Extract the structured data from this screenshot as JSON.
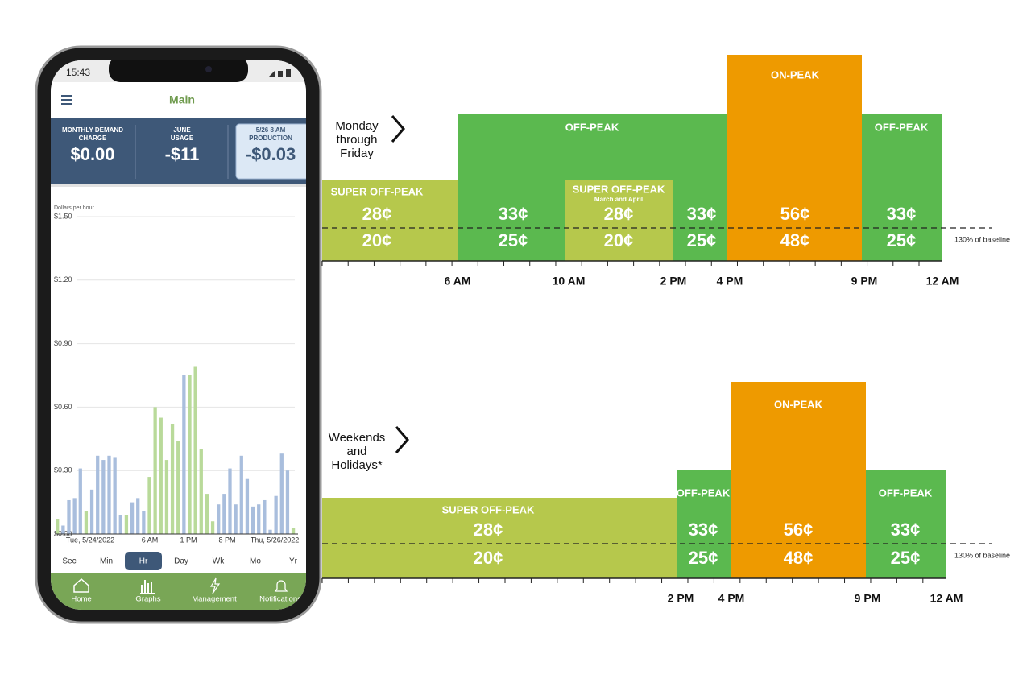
{
  "phone": {
    "status_time": "15:43",
    "app_title": "Main",
    "cards": [
      {
        "label_lines": [
          "MONTHLY DEMAND",
          "CHARGE"
        ],
        "value": "$0.00"
      },
      {
        "label_lines": [
          "JUNE",
          "USAGE"
        ],
        "value": "-$11"
      },
      {
        "label_lines": [
          "5/26 8 AM",
          "PRODUCTION"
        ],
        "value": "-$0.03"
      }
    ],
    "chart_data": {
      "type": "bar",
      "y_label": "Dollars per hour",
      "values": [
        0.07,
        0.04,
        0.16,
        0.17,
        0.31,
        0.11,
        0.21,
        0.37,
        0.35,
        0.37,
        0.36,
        0.09,
        0.09,
        0.15,
        0.17,
        0.11,
        0.27,
        0.6,
        0.55,
        0.35,
        0.52,
        0.44,
        0.75,
        0.75,
        0.79,
        0.4,
        0.19,
        0.06,
        0.14,
        0.19,
        0.31,
        0.14,
        0.37,
        0.26,
        0.13,
        0.14,
        0.16,
        0.02,
        0.18,
        0.38,
        0.3,
        0.03
      ],
      "colors": [
        "#b9da9a",
        "#a9bedd",
        "#a9bedd",
        "#a9bedd",
        "#a9bedd",
        "#b9da9a",
        "#a9bedd",
        "#a9bedd",
        "#a9bedd",
        "#a9bedd",
        "#a9bedd",
        "#a9bedd",
        "#b9da9a",
        "#a9bedd",
        "#a9bedd",
        "#a9bedd",
        "#b9da9a",
        "#b9da9a",
        "#b9da9a",
        "#b9da9a",
        "#b9da9a",
        "#b9da9a",
        "#a9bedd",
        "#b9da9a",
        "#b9da9a",
        "#b9da9a",
        "#b9da9a",
        "#b9da9a",
        "#a9bedd",
        "#a9bedd",
        "#a9bedd",
        "#a9bedd",
        "#a9bedd",
        "#a9bedd",
        "#a9bedd",
        "#a9bedd",
        "#a9bedd",
        "#a9bedd",
        "#a9bedd",
        "#a9bedd",
        "#a9bedd",
        "#b9da9a"
      ],
      "ylim": [
        0,
        1.5
      ],
      "yticks": [
        {
          "value": 0,
          "label": "$0.00"
        },
        {
          "value": 0.3,
          "label": "$0.30"
        },
        {
          "value": 0.6,
          "label": "$0.60"
        },
        {
          "value": 0.9,
          "label": "$0.90"
        },
        {
          "value": 1.2,
          "label": "$1.20"
        },
        {
          "value": 1.5,
          "label": "$1.50"
        }
      ],
      "x_labels": [
        "Tue, 5/24/2022",
        "6 AM",
        "1 PM",
        "8 PM",
        "Thu, 5/26/2022"
      ],
      "grid": true
    },
    "tabs": [
      "Sec",
      "Min",
      "Hr",
      "Day",
      "Wk",
      "Mo",
      "Yr"
    ],
    "selected_tab_index": 2,
    "nav": [
      "Home",
      "Graphs",
      "Management",
      "Notifications"
    ]
  },
  "schedule": {
    "panels": [
      {
        "day_lines": [
          "Monday",
          "through",
          "Friday"
        ],
        "labels": [
          "SUPER OFF-PEAK",
          "OFF-PEAK",
          "SUPER OFF-PEAK",
          "March and April",
          "ON-PEAK",
          "OFF-PEAK"
        ],
        "prices": [
          [
            "28¢",
            "20¢"
          ],
          [
            "33¢",
            "25¢"
          ],
          [
            "28¢",
            "20¢"
          ],
          [
            "33¢",
            "25¢"
          ],
          [
            "56¢",
            "48¢"
          ],
          [
            "33¢",
            "25¢"
          ]
        ],
        "times": [
          "6 AM",
          "10 AM",
          "2 PM",
          "4 PM",
          "9 PM",
          "12 AM"
        ],
        "baseline_note": "130% of baseline"
      },
      {
        "day_lines": [
          "Weekends",
          "and",
          "Holidays*"
        ],
        "labels": [
          "SUPER OFF-PEAK",
          "OFF-PEAK",
          "ON-PEAK",
          "OFF-PEAK"
        ],
        "prices": [
          [
            "28¢",
            "20¢"
          ],
          [
            "33¢",
            "25¢"
          ],
          [
            "56¢",
            "48¢"
          ],
          [
            "33¢",
            "25¢"
          ]
        ],
        "times": [
          "2 PM",
          "4 PM",
          "9 PM",
          "12 AM"
        ],
        "baseline_note": "130% of baseline"
      }
    ]
  }
}
